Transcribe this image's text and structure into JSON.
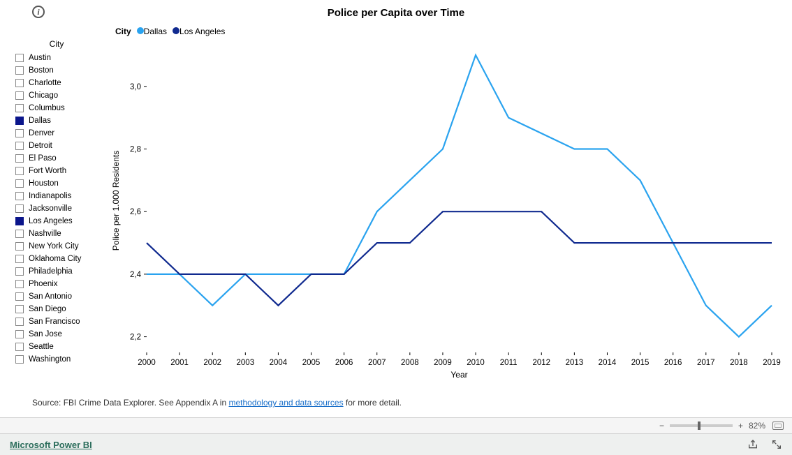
{
  "title": "Police per Capita over Time",
  "legend": {
    "label": "City",
    "items": [
      {
        "name": "Dallas",
        "color": "#2aa3ef"
      },
      {
        "name": "Los Angeles",
        "color": "#102a8f"
      }
    ]
  },
  "city_filter": {
    "header": "City",
    "items": [
      {
        "label": "Austin",
        "checked": false
      },
      {
        "label": "Boston",
        "checked": false
      },
      {
        "label": "Charlotte",
        "checked": false
      },
      {
        "label": "Chicago",
        "checked": false
      },
      {
        "label": "Columbus",
        "checked": false
      },
      {
        "label": "Dallas",
        "checked": true
      },
      {
        "label": "Denver",
        "checked": false
      },
      {
        "label": "Detroit",
        "checked": false
      },
      {
        "label": "El Paso",
        "checked": false
      },
      {
        "label": "Fort Worth",
        "checked": false
      },
      {
        "label": "Houston",
        "checked": false
      },
      {
        "label": "Indianapolis",
        "checked": false
      },
      {
        "label": "Jacksonville",
        "checked": false
      },
      {
        "label": "Los Angeles",
        "checked": true
      },
      {
        "label": "Nashville",
        "checked": false
      },
      {
        "label": "New York City",
        "checked": false
      },
      {
        "label": "Oklahoma City",
        "checked": false
      },
      {
        "label": "Philadelphia",
        "checked": false
      },
      {
        "label": "Phoenix",
        "checked": false
      },
      {
        "label": "San Antonio",
        "checked": false
      },
      {
        "label": "San Diego",
        "checked": false
      },
      {
        "label": "San Francisco",
        "checked": false
      },
      {
        "label": "San Jose",
        "checked": false
      },
      {
        "label": "Seattle",
        "checked": false
      },
      {
        "label": "Washington",
        "checked": false
      }
    ]
  },
  "chart": {
    "type": "line",
    "x_title": "Year",
    "y_title": "Police per 1.000 Residents",
    "x_values": [
      2000,
      2001,
      2002,
      2003,
      2004,
      2005,
      2006,
      2007,
      2008,
      2009,
      2010,
      2011,
      2012,
      2013,
      2014,
      2015,
      2016,
      2017,
      2018,
      2019
    ],
    "y_ticks": [
      2.2,
      2.4,
      2.6,
      2.8,
      3.0
    ],
    "y_tick_labels": [
      "2,2",
      "2,4",
      "2,6",
      "2,8",
      "3,0"
    ],
    "ylim": [
      2.15,
      3.12
    ],
    "series": [
      {
        "name": "Dallas",
        "color": "#2aa3ef",
        "points": [
          [
            2000,
            2.4
          ],
          [
            2001,
            2.4
          ],
          [
            2002,
            2.3
          ],
          [
            2003,
            2.4
          ],
          [
            2004,
            2.4
          ],
          [
            2005,
            2.4
          ],
          [
            2006,
            2.4
          ],
          [
            2007,
            2.6
          ],
          [
            2008,
            2.7
          ],
          [
            2009,
            2.8
          ],
          [
            2010,
            3.1
          ],
          [
            2011,
            2.9
          ],
          [
            2013,
            2.8
          ],
          [
            2014,
            2.8
          ],
          [
            2015,
            2.7
          ],
          [
            2016,
            2.5
          ],
          [
            2017,
            2.3
          ],
          [
            2018,
            2.2
          ],
          [
            2019,
            2.3
          ]
        ]
      },
      {
        "name": "Los Angeles",
        "color": "#102a8f",
        "points": [
          [
            2000,
            2.5
          ],
          [
            2001,
            2.4
          ],
          [
            2002,
            2.4
          ],
          [
            2003,
            2.4
          ],
          [
            2004,
            2.3
          ],
          [
            2005,
            2.4
          ],
          [
            2006,
            2.4
          ],
          [
            2007,
            2.5
          ],
          [
            2008,
            2.5
          ],
          [
            2009,
            2.6
          ],
          [
            2010,
            2.6
          ],
          [
            2011,
            2.6
          ],
          [
            2012,
            2.6
          ],
          [
            2013,
            2.5
          ],
          [
            2014,
            2.5
          ],
          [
            2015,
            2.5
          ],
          [
            2016,
            2.5
          ],
          [
            2017,
            2.5
          ],
          [
            2018,
            2.5
          ],
          [
            2019,
            2.5
          ]
        ]
      }
    ],
    "background_color": "#ffffff",
    "axis_color": "#000000",
    "tick_font_size": 11.5,
    "title_font_size": 15,
    "axis_title_font_size": 12,
    "line_width": 2.2
  },
  "source": {
    "prefix": "Source: FBI Crime Data Explorer. See Appendix A in ",
    "link_text": "methodology and data sources",
    "suffix": " for more detail."
  },
  "zoom": {
    "minus": "−",
    "plus": "+",
    "value": "82%",
    "slider_pos_pct": 45
  },
  "footer": {
    "brand": "Microsoft Power BI"
  }
}
